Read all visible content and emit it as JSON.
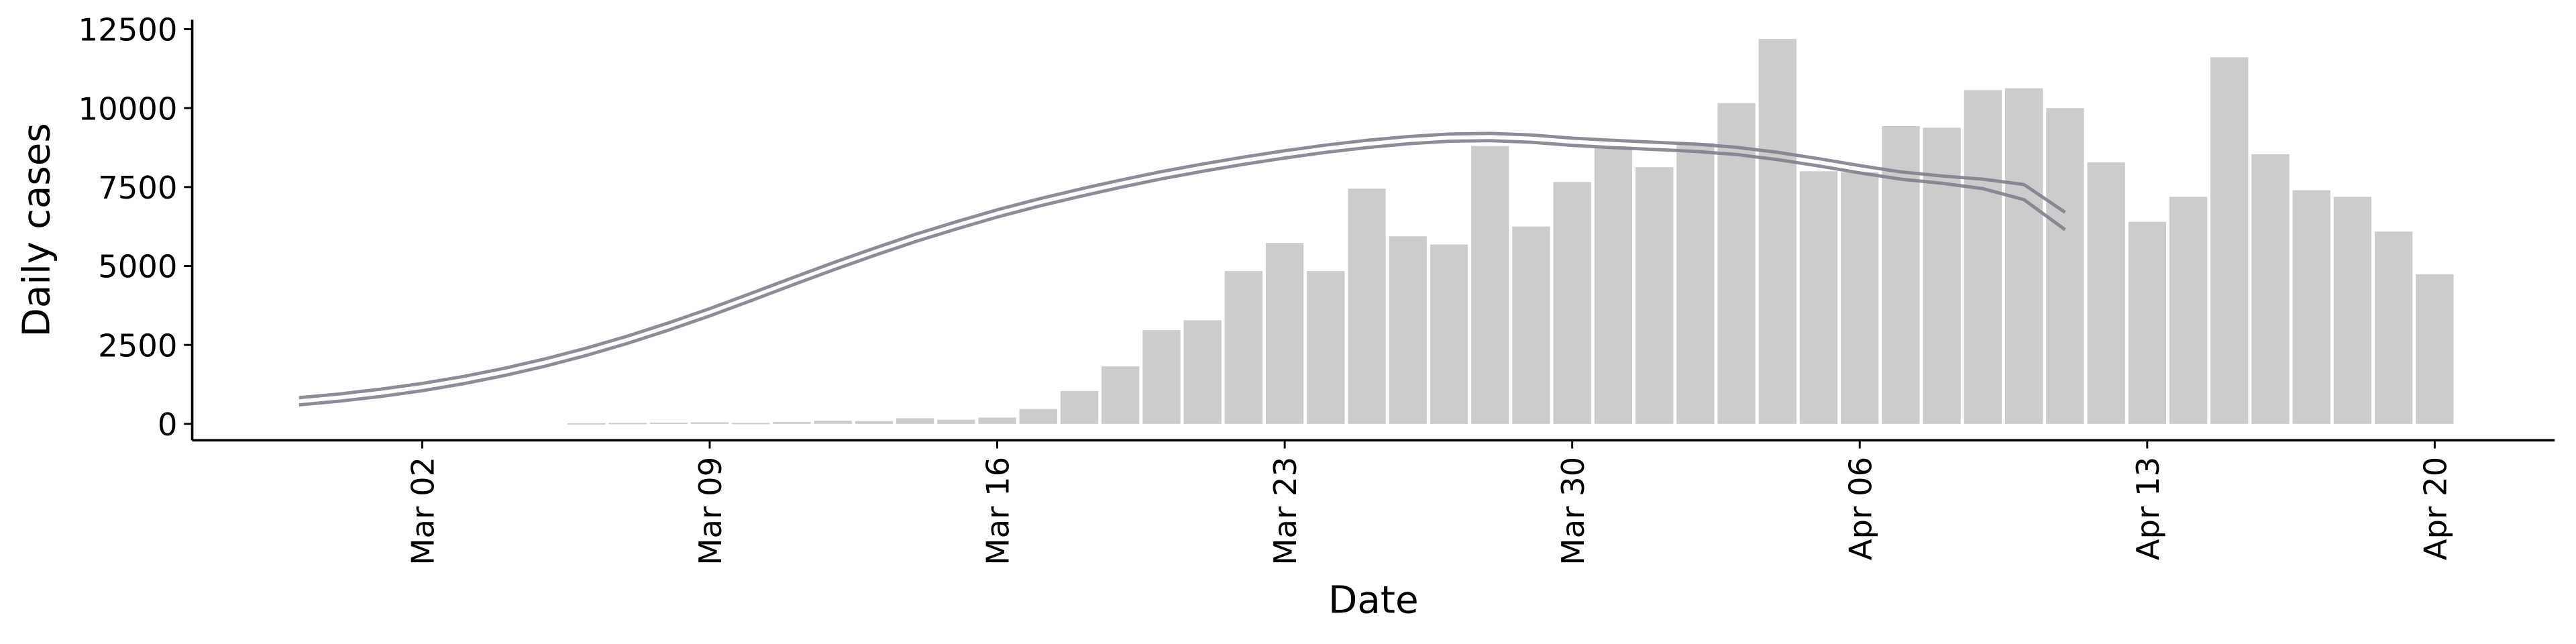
{
  "chart_data": {
    "type": "bar",
    "x_label": "Date",
    "y_label": "Daily cases",
    "x": [
      "Feb 28",
      "Feb 29",
      "Mar 01",
      "Mar 02",
      "Mar 03",
      "Mar 04",
      "Mar 05",
      "Mar 06",
      "Mar 07",
      "Mar 08",
      "Mar 09",
      "Mar 10",
      "Mar 11",
      "Mar 12",
      "Mar 13",
      "Mar 14",
      "Mar 15",
      "Mar 16",
      "Mar 17",
      "Mar 18",
      "Mar 19",
      "Mar 20",
      "Mar 21",
      "Mar 22",
      "Mar 23",
      "Mar 24",
      "Mar 25",
      "Mar 26",
      "Mar 27",
      "Mar 28",
      "Mar 29",
      "Mar 30",
      "Mar 31",
      "Apr 01",
      "Apr 02",
      "Apr 03",
      "Apr 04",
      "Apr 05",
      "Apr 06",
      "Apr 07",
      "Apr 08",
      "Apr 09",
      "Apr 10",
      "Apr 11",
      "Apr 12",
      "Apr 13",
      "Apr 14",
      "Apr 15",
      "Apr 16",
      "Apr 17",
      "Apr 18",
      "Apr 19",
      "Apr 20"
    ],
    "values": [
      null,
      null,
      null,
      null,
      null,
      null,
      null,
      20,
      30,
      40,
      50,
      30,
      60,
      100,
      90,
      180,
      130,
      200,
      470,
      1040,
      1820,
      2970,
      3280,
      4840,
      5730,
      4840,
      7450,
      5940,
      5680,
      8800,
      6250,
      7660,
      8750,
      8130,
      8900,
      10160,
      12190,
      8000,
      7970,
      9430,
      9380,
      10570,
      10630,
      10000,
      8280,
      6400,
      7190,
      11610,
      8540,
      7400,
      7190,
      6090,
      4740
    ],
    "color": "#cccccc",
    "lines": [
      {
        "color": "#7f818c",
        "values": [
          830,
          950,
          1100,
          1280,
          1500,
          1760,
          2060,
          2400,
          2780,
          3200,
          3650,
          4130,
          4620,
          5100,
          5560,
          6000,
          6400,
          6780,
          7120,
          7430,
          7720,
          7990,
          8230,
          8450,
          8650,
          8830,
          8980,
          9100,
          9180,
          9200,
          9150,
          9050,
          8980,
          8920,
          8860,
          8760,
          8600,
          8400,
          8180,
          7980,
          7850,
          7750,
          7580,
          6700,
          null,
          null,
          null,
          null,
          null,
          null,
          null,
          null,
          null
        ]
      },
      {
        "color": "#7f818c",
        "values": [
          600,
          720,
          870,
          1050,
          1270,
          1530,
          1830,
          2170,
          2550,
          2970,
          3420,
          3900,
          4390,
          4870,
          5330,
          5770,
          6170,
          6550,
          6890,
          7200,
          7490,
          7760,
          8000,
          8220,
          8420,
          8600,
          8750,
          8870,
          8950,
          8970,
          8920,
          8820,
          8750,
          8690,
          8630,
          8530,
          8370,
          8170,
          7950,
          7750,
          7620,
          7450,
          7100,
          6150,
          null,
          null,
          null,
          null,
          null,
          null,
          null,
          null,
          null
        ]
      }
    ],
    "ylim": [
      -520,
      12800
    ],
    "yticks": [
      0,
      2500,
      5000,
      7500,
      10000,
      12500
    ],
    "xticks": [
      "Mar 02",
      "Mar 09",
      "Mar 16",
      "Mar 23",
      "Mar 30",
      "Apr 06",
      "Apr 13",
      "Apr 20"
    ]
  }
}
